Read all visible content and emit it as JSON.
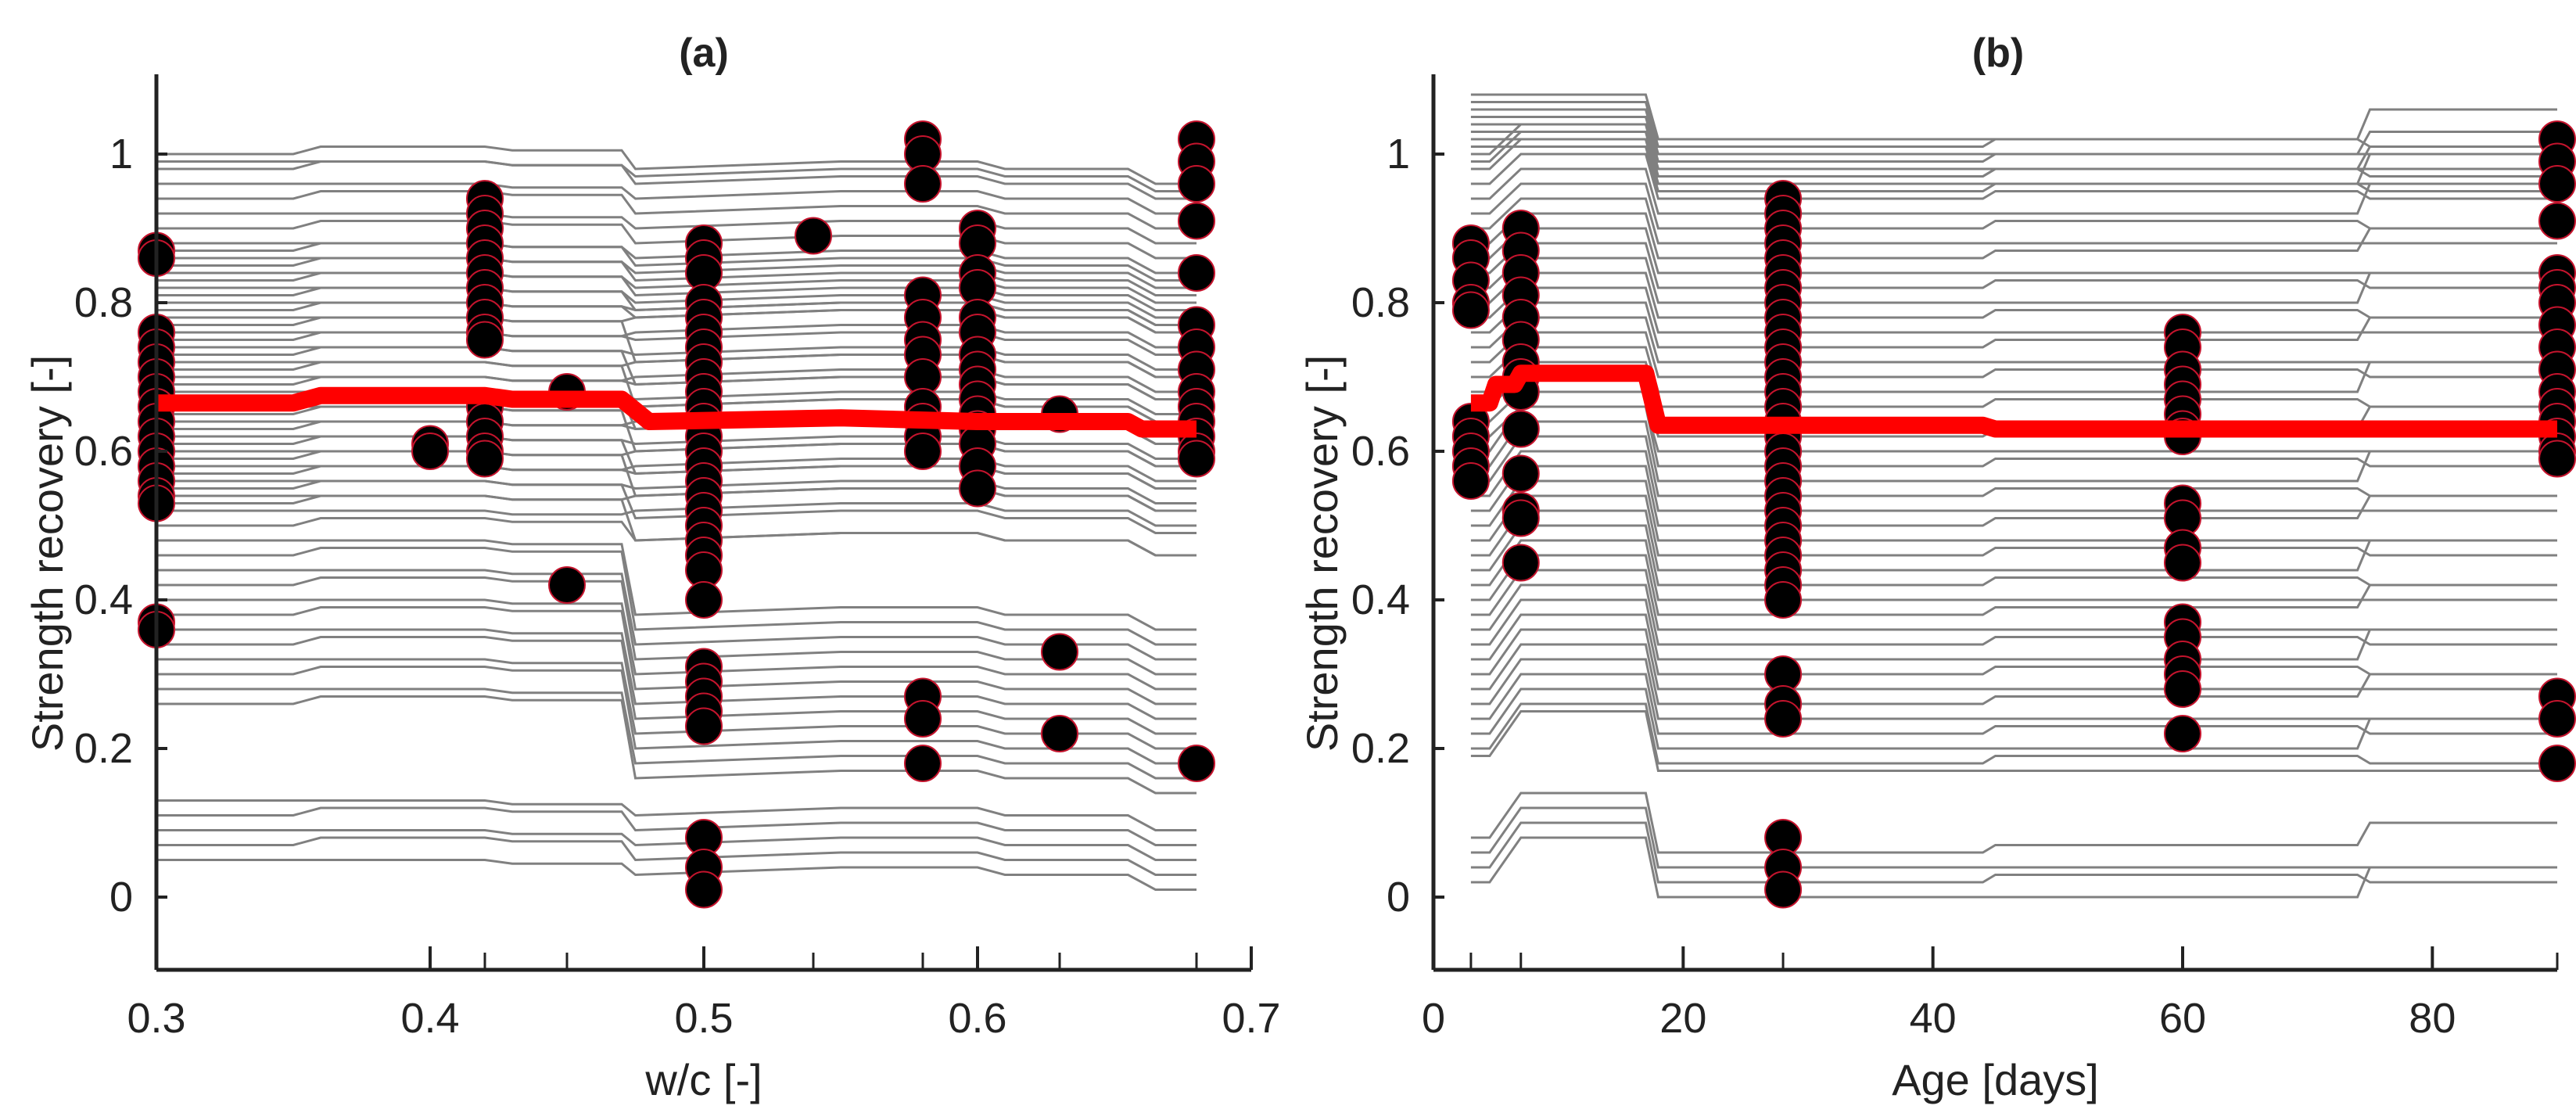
{
  "chart_data": [
    {
      "panel": "a",
      "type": "line",
      "title": "(a)",
      "xlabel": "w/c [-]",
      "ylabel": "Strength recovery [-]",
      "xlim": [
        0.3,
        0.7
      ],
      "ylim": [
        -0.1,
        1.1
      ],
      "xticks": [
        0.3,
        0.4,
        0.5,
        0.6,
        0.7
      ],
      "xtick_labels": [
        "0.3",
        "0.4",
        "0.5",
        "0.6",
        "0.7"
      ],
      "yticks": [
        0,
        0.2,
        0.4,
        0.6,
        0.8,
        1
      ],
      "ytick_labels": [
        "0",
        "0.2",
        "0.4",
        "0.6",
        "0.8",
        "1"
      ],
      "grid": false,
      "background_lines": {
        "color": "#808080",
        "description_levels_at_x0_3": [
          1.0,
          0.99,
          0.98,
          0.96,
          0.94,
          0.92,
          0.9,
          0.88,
          0.87,
          0.86,
          0.85,
          0.84,
          0.83,
          0.82,
          0.81,
          0.8,
          0.79,
          0.78,
          0.77,
          0.76,
          0.75,
          0.74,
          0.73,
          0.72,
          0.71,
          0.7,
          0.69,
          0.68,
          0.67,
          0.66,
          0.65,
          0.64,
          0.63,
          0.62,
          0.61,
          0.6,
          0.59,
          0.58,
          0.57,
          0.56,
          0.55,
          0.54,
          0.53,
          0.52,
          0.5,
          0.48,
          0.46,
          0.44,
          0.42,
          0.4,
          0.38,
          0.36,
          0.34,
          0.32,
          0.3,
          0.28,
          0.26,
          0.13,
          0.11,
          0.09,
          0.07,
          0.05
        ]
      },
      "mean_line": {
        "color": "#ff0000",
        "x": [
          0.3,
          0.35,
          0.36,
          0.42,
          0.43,
          0.47,
          0.48,
          0.55,
          0.6,
          0.655,
          0.66,
          0.68
        ],
        "y": [
          0.665,
          0.665,
          0.675,
          0.675,
          0.67,
          0.67,
          0.64,
          0.645,
          0.64,
          0.64,
          0.63,
          0.63
        ]
      },
      "points": {
        "fill": "#000000",
        "edge": "#c4142d",
        "groups": [
          {
            "x": 0.3,
            "y": [
              0.87,
              0.86,
              0.76,
              0.74,
              0.72,
              0.7,
              0.68,
              0.66,
              0.64,
              0.62,
              0.6,
              0.58,
              0.56,
              0.54,
              0.53,
              0.37,
              0.36
            ]
          },
          {
            "x": 0.4,
            "y": [
              0.61,
              0.6
            ]
          },
          {
            "x": 0.42,
            "y": [
              0.94,
              0.92,
              0.9,
              0.88,
              0.86,
              0.84,
              0.82,
              0.8,
              0.78,
              0.76,
              0.75,
              0.66,
              0.64,
              0.62,
              0.6,
              0.59
            ]
          },
          {
            "x": 0.45,
            "y": [
              0.68,
              0.42
            ]
          },
          {
            "x": 0.5,
            "y": [
              0.88,
              0.86,
              0.84,
              0.8,
              0.78,
              0.76,
              0.74,
              0.72,
              0.7,
              0.68,
              0.66,
              0.64,
              0.62,
              0.6,
              0.58,
              0.56,
              0.54,
              0.52,
              0.5,
              0.48,
              0.46,
              0.44,
              0.4,
              0.31,
              0.29,
              0.27,
              0.25,
              0.23,
              0.08,
              0.04,
              0.01
            ]
          },
          {
            "x": 0.54,
            "y": [
              0.89
            ]
          },
          {
            "x": 0.58,
            "y": [
              1.02,
              1.0,
              0.96,
              0.81,
              0.78,
              0.75,
              0.73,
              0.7,
              0.66,
              0.64,
              0.62,
              0.6,
              0.27,
              0.24,
              0.18
            ]
          },
          {
            "x": 0.6,
            "y": [
              0.9,
              0.88,
              0.84,
              0.82,
              0.78,
              0.76,
              0.73,
              0.71,
              0.69,
              0.67,
              0.65,
              0.63,
              0.61,
              0.58,
              0.55
            ]
          },
          {
            "x": 0.63,
            "y": [
              0.65,
              0.33,
              0.22
            ]
          },
          {
            "x": 0.68,
            "y": [
              1.02,
              0.99,
              0.96,
              0.91,
              0.84,
              0.77,
              0.74,
              0.71,
              0.68,
              0.66,
              0.64,
              0.62,
              0.6,
              0.59,
              0.18
            ]
          }
        ]
      }
    },
    {
      "panel": "b",
      "type": "line",
      "title": "(b)",
      "xlabel": "Age [days]",
      "ylabel": "Strength recovery [-]",
      "xlim": [
        0,
        90
      ],
      "ylim": [
        -0.1,
        1.1
      ],
      "xticks": [
        0,
        20,
        40,
        60,
        80
      ],
      "xtick_labels": [
        "0",
        "20",
        "40",
        "60",
        "80"
      ],
      "yticks": [
        0,
        0.2,
        0.4,
        0.6,
        0.8,
        1
      ],
      "ytick_labels": [
        "0",
        "0.2",
        "0.4",
        "0.6",
        "0.8",
        "1"
      ],
      "grid": false,
      "background_lines": {
        "color": "#808080",
        "description_levels_at_x3": [
          1.08,
          1.07,
          1.06,
          1.05,
          1.04,
          1.03,
          1.02,
          1.01,
          1.0,
          0.99,
          0.98,
          0.96,
          0.94,
          0.92,
          0.9,
          0.88,
          0.86,
          0.84,
          0.82,
          0.8,
          0.78,
          0.76,
          0.74,
          0.72,
          0.7,
          0.68,
          0.66,
          0.64,
          0.62,
          0.6,
          0.58,
          0.56,
          0.54,
          0.52,
          0.5,
          0.48,
          0.46,
          0.44,
          0.42,
          0.4,
          0.38,
          0.36,
          0.34,
          0.32,
          0.3,
          0.28,
          0.26,
          0.24,
          0.22,
          0.2,
          0.19,
          0.08,
          0.06,
          0.04,
          0.02
        ]
      },
      "mean_line": {
        "color": "#ff0000",
        "x": [
          3,
          4.5,
          5,
          6.5,
          7,
          17,
          18,
          44,
          45,
          90
        ],
        "y": [
          0.665,
          0.665,
          0.69,
          0.69,
          0.705,
          0.705,
          0.635,
          0.635,
          0.63,
          0.63
        ]
      },
      "points": {
        "fill": "#000000",
        "edge": "#c4142d",
        "groups": [
          {
            "x": 3,
            "y": [
              0.88,
              0.86,
              0.83,
              0.8,
              0.79,
              0.64,
              0.62,
              0.6,
              0.58,
              0.56
            ]
          },
          {
            "x": 7,
            "y": [
              0.9,
              0.87,
              0.84,
              0.81,
              0.78,
              0.75,
              0.72,
              0.7,
              0.68,
              0.63,
              0.57,
              0.52,
              0.51,
              0.45
            ]
          },
          {
            "x": 28,
            "y": [
              0.94,
              0.92,
              0.9,
              0.88,
              0.86,
              0.84,
              0.82,
              0.8,
              0.78,
              0.76,
              0.74,
              0.72,
              0.7,
              0.68,
              0.66,
              0.64,
              0.62,
              0.6,
              0.58,
              0.56,
              0.54,
              0.52,
              0.5,
              0.48,
              0.46,
              0.44,
              0.42,
              0.4,
              0.3,
              0.26,
              0.24,
              0.08,
              0.04,
              0.01
            ]
          },
          {
            "x": 60,
            "y": [
              0.76,
              0.74,
              0.71,
              0.69,
              0.67,
              0.65,
              0.63,
              0.62,
              0.53,
              0.51,
              0.47,
              0.45,
              0.37,
              0.35,
              0.32,
              0.3,
              0.28,
              0.22
            ]
          },
          {
            "x": 90,
            "y": [
              1.02,
              0.99,
              0.96,
              0.91,
              0.84,
              0.82,
              0.8,
              0.77,
              0.74,
              0.71,
              0.68,
              0.66,
              0.64,
              0.62,
              0.6,
              0.59,
              0.27,
              0.24,
              0.18
            ]
          }
        ]
      }
    }
  ]
}
